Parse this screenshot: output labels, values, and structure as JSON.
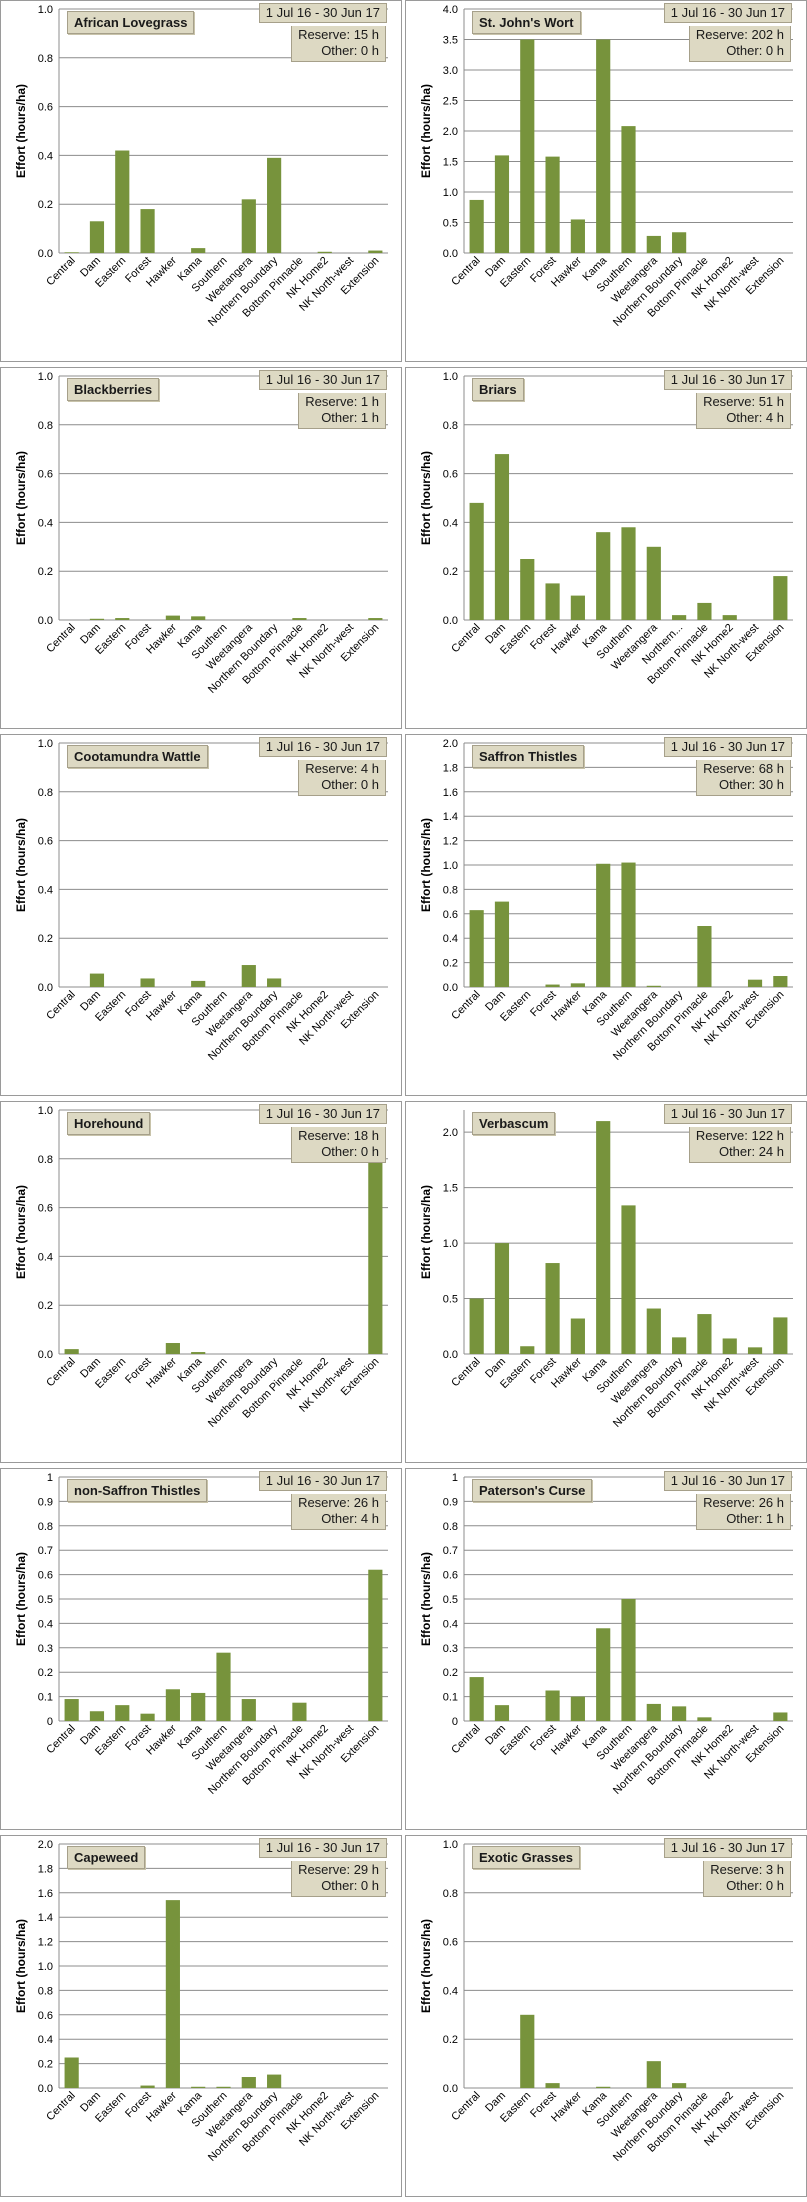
{
  "date_range": "1 Jul 16  -  30 Jun 17",
  "ylabel": "Effort  (hours/ha)",
  "categories": [
    "Central",
    "Dam",
    "Eastern",
    "Forest",
    "Hawker",
    "Kama",
    "Southern",
    "Weetangera",
    "Northern Boundary",
    "Bottom Pinnacle",
    "NK Home2",
    "NK North-west",
    "Extension"
  ],
  "bar_color": "#77933c",
  "chart_data": [
    {
      "type": "bar",
      "title": "African Lovegrass",
      "reserve": "Reserve: 15 h",
      "other": "Other: 0 h",
      "ylim": [
        0,
        1.0
      ],
      "yticks": [
        "0.0",
        "0.2",
        "0.4",
        "0.6",
        "0.8",
        "1.0"
      ],
      "values": [
        0.003,
        0.13,
        0.42,
        0.18,
        0,
        0.02,
        0,
        0.22,
        0.39,
        0,
        0.005,
        0,
        0.01
      ]
    },
    {
      "type": "bar",
      "title": "St. John's Wort",
      "reserve": "Reserve: 202 h",
      "other": "Other: 0 h",
      "ylim": [
        0,
        4.0
      ],
      "yticks": [
        "0.0",
        "0.5",
        "1.0",
        "1.5",
        "2.0",
        "2.5",
        "3.0",
        "3.5",
        "4.0"
      ],
      "values": [
        0.87,
        1.6,
        3.5,
        1.58,
        0.55,
        3.5,
        2.08,
        0.28,
        0.34,
        0,
        0,
        0,
        0
      ]
    },
    {
      "type": "bar",
      "title": "Blackberries",
      "reserve": "Reserve: 1 h",
      "other": "Other: 1 h",
      "ylim": [
        0,
        1.0
      ],
      "yticks": [
        "0.0",
        "0.2",
        "0.4",
        "0.6",
        "0.8",
        "1.0"
      ],
      "values": [
        0,
        0.005,
        0.008,
        0,
        0.018,
        0.015,
        0,
        0,
        0,
        0.008,
        0,
        0,
        0.008
      ]
    },
    {
      "type": "bar",
      "title": "Briars",
      "reserve": "Reserve: 51 h",
      "other": "Other: 4 h",
      "categories": [
        "Central",
        "Dam",
        "Eastern",
        "Forest",
        "Hawker",
        "Kama",
        "Southern",
        "Weetangera",
        "Northern...",
        "Bottom Pinnacle",
        "NK Home2",
        "NK North-west",
        "Extension"
      ],
      "ylim": [
        0,
        1.0
      ],
      "yticks": [
        "0.0",
        "0.2",
        "0.4",
        "0.6",
        "0.8",
        "1.0"
      ],
      "values": [
        0.48,
        0.68,
        0.25,
        0.15,
        0.1,
        0.36,
        0.38,
        0.3,
        0.02,
        0.07,
        0.02,
        0,
        0.18
      ]
    },
    {
      "type": "bar",
      "title": "Cootamundra Wattle",
      "reserve": "Reserve: 4 h",
      "other": "Other: 0 h",
      "ylim": [
        0,
        1.0
      ],
      "yticks": [
        "0.0",
        "0.2",
        "0.4",
        "0.6",
        "0.8",
        "1.0"
      ],
      "values": [
        0,
        0.055,
        0,
        0.035,
        0,
        0.025,
        0,
        0.09,
        0.035,
        0,
        0,
        0,
        0
      ]
    },
    {
      "type": "bar",
      "title": "Saffron Thistles",
      "reserve": "Reserve: 68 h",
      "other": "Other: 30 h",
      "ylim": [
        0,
        2.0
      ],
      "yticks": [
        "0.0",
        "0.2",
        "0.4",
        "0.6",
        "0.8",
        "1.0",
        "1.2",
        "1.4",
        "1.6",
        "1.8",
        "2.0"
      ],
      "values": [
        0.63,
        0.7,
        0,
        0.02,
        0.03,
        1.01,
        1.02,
        0.01,
        0,
        0.5,
        0,
        0.06,
        0.09
      ]
    },
    {
      "type": "bar",
      "title": "Horehound",
      "reserve": "Reserve: 18 h",
      "other": "Other: 0 h",
      "ylim": [
        0,
        1.0
      ],
      "yticks": [
        "0.0",
        "0.2",
        "0.4",
        "0.6",
        "0.8",
        "1.0"
      ],
      "values": [
        0.02,
        0,
        0,
        0,
        0.045,
        0.008,
        0,
        0,
        0,
        0,
        0,
        0,
        0.84
      ]
    },
    {
      "type": "bar",
      "title": "Verbascum",
      "reserve": "Reserve: 122 h",
      "other": "Other: 24 h",
      "ylim": [
        0,
        2.2
      ],
      "yticks": [
        "0.0",
        "0.5",
        "1.0",
        "1.5",
        "2.0"
      ],
      "ytick_values": [
        0,
        0.5,
        1.0,
        1.5,
        2.0
      ],
      "values": [
        0.5,
        1.0,
        0.07,
        0.82,
        0.32,
        2.1,
        1.34,
        0.41,
        0.15,
        0.36,
        0.14,
        0.06,
        0.33
      ]
    },
    {
      "type": "bar",
      "title": "non-Saffron Thistles",
      "reserve": "Reserve: 26 h",
      "other": "Other: 4 h",
      "ylim": [
        0,
        1.0
      ],
      "yticks": [
        "0",
        "0.1",
        "0.2",
        "0.3",
        "0.4",
        "0.5",
        "0.6",
        "0.7",
        "0.8",
        "0.9",
        "1"
      ],
      "values": [
        0.09,
        0.04,
        0.065,
        0.03,
        0.13,
        0.115,
        0.28,
        0.09,
        0,
        0.075,
        0,
        0,
        0.62
      ]
    },
    {
      "type": "bar",
      "title": "Paterson's Curse",
      "reserve": "Reserve: 26 h",
      "other": "Other: 1 h",
      "ylim": [
        0,
        1.0
      ],
      "yticks": [
        "0",
        "0.1",
        "0.2",
        "0.3",
        "0.4",
        "0.5",
        "0.6",
        "0.7",
        "0.8",
        "0.9",
        "1"
      ],
      "values": [
        0.18,
        0.065,
        0,
        0.125,
        0.1,
        0.38,
        0.5,
        0.07,
        0.06,
        0.015,
        0,
        0,
        0.035
      ]
    },
    {
      "type": "bar",
      "title": "Capeweed",
      "reserve": "Reserve: 29 h",
      "other": "Other: 0 h",
      "ylim": [
        0,
        2.0
      ],
      "yticks": [
        "0.0",
        "0.2",
        "0.4",
        "0.6",
        "0.8",
        "1.0",
        "1.2",
        "1.4",
        "1.6",
        "1.8",
        "2.0"
      ],
      "values": [
        0.25,
        0,
        0,
        0.02,
        1.54,
        0.01,
        0.01,
        0.09,
        0.11,
        0,
        0,
        0,
        0
      ]
    },
    {
      "type": "bar",
      "title": "Exotic Grasses",
      "reserve": "Reserve: 3 h",
      "other": "Other: 0 h",
      "ylim": [
        0,
        1.0
      ],
      "yticks": [
        "0.0",
        "0.2",
        "0.4",
        "0.6",
        "0.8",
        "1.0"
      ],
      "values": [
        0,
        0,
        0.3,
        0.02,
        0,
        0.005,
        0,
        0.11,
        0.02,
        0,
        0,
        0,
        0
      ]
    }
  ]
}
